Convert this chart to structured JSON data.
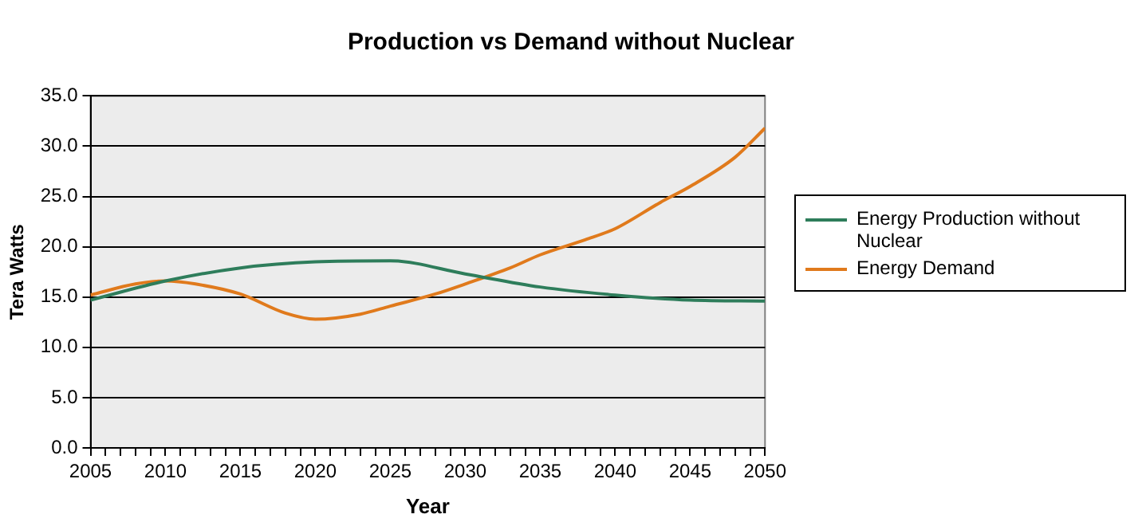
{
  "chart_data": {
    "type": "line",
    "title": "Production vs Demand without Nuclear",
    "xlabel": "Year",
    "ylabel": "Tera Watts",
    "xlim": [
      2005,
      2050
    ],
    "xticks": [
      2005,
      {
        "value": 2006,
        "label": null
      },
      {
        "value": 2007,
        "label": null
      },
      {
        "value": 2008,
        "label": null
      },
      {
        "value": 2009,
        "label": null
      },
      2010,
      {
        "value": 2011,
        "label": null
      },
      {
        "value": 2012,
        "label": null
      },
      {
        "value": 2013,
        "label": null
      },
      {
        "value": 2014,
        "label": null
      },
      2015,
      {
        "value": 2016,
        "label": null
      },
      {
        "value": 2017,
        "label": null
      },
      {
        "value": 2018,
        "label": null
      },
      {
        "value": 2019,
        "label": null
      },
      2020,
      {
        "value": 2021,
        "label": null
      },
      {
        "value": 2022,
        "label": null
      },
      {
        "value": 2023,
        "label": null
      },
      {
        "value": 2024,
        "label": null
      },
      2025,
      {
        "value": 2026,
        "label": null
      },
      {
        "value": 2027,
        "label": null
      },
      {
        "value": 2028,
        "label": null
      },
      {
        "value": 2029,
        "label": null
      },
      2030,
      {
        "value": 2031,
        "label": null
      },
      {
        "value": 2032,
        "label": null
      },
      {
        "value": 2033,
        "label": null
      },
      {
        "value": 2034,
        "label": null
      },
      2035,
      {
        "value": 2036,
        "label": null
      },
      {
        "value": 2037,
        "label": null
      },
      {
        "value": 2038,
        "label": null
      },
      {
        "value": 2039,
        "label": null
      },
      2040,
      {
        "value": 2041,
        "label": null
      },
      {
        "value": 2042,
        "label": null
      },
      {
        "value": 2043,
        "label": null
      },
      {
        "value": 2044,
        "label": null
      },
      2045,
      {
        "value": 2046,
        "label": null
      },
      {
        "value": 2047,
        "label": null
      },
      {
        "value": 2048,
        "label": null
      },
      {
        "value": 2049,
        "label": null
      },
      2050
    ],
    "ylim": [
      0,
      35
    ],
    "yticks": [
      {
        "value": 0,
        "label": "0.0"
      },
      {
        "value": 5,
        "label": "5.0"
      },
      {
        "value": 10,
        "label": "10.0"
      },
      {
        "value": 15,
        "label": "15.0"
      },
      {
        "value": 20,
        "label": "20.0"
      },
      {
        "value": 25,
        "label": "25.0"
      },
      {
        "value": 30,
        "label": "30.0"
      },
      {
        "value": 35,
        "label": "35.0"
      }
    ],
    "grid": "y",
    "legend": "right",
    "marker": "none",
    "line_style": "solid",
    "series": [
      {
        "name": "Energy Production without Nuclear",
        "color": "#2e7d5b",
        "x": [
          2005,
          2010,
          2015,
          2020,
          2025,
          2030,
          2035,
          2040,
          2045,
          2050
        ],
        "values": [
          14.7,
          16.6,
          17.9,
          18.5,
          18.6,
          17.3,
          16.0,
          15.2,
          14.7,
          14.6
        ]
      },
      {
        "name": "Energy Demand",
        "color": "#e07a1c",
        "x": [
          2005,
          2008,
          2010,
          2012,
          2015,
          2018,
          2020,
          2023,
          2025,
          2028,
          2030,
          2033,
          2035,
          2038,
          2040,
          2043,
          2045,
          2048,
          2050
        ],
        "values": [
          15.2,
          16.3,
          16.6,
          16.3,
          15.3,
          13.4,
          12.8,
          13.3,
          14.1,
          15.3,
          16.3,
          17.9,
          19.2,
          20.7,
          21.8,
          24.4,
          26.0,
          28.9,
          31.8
        ]
      }
    ]
  }
}
